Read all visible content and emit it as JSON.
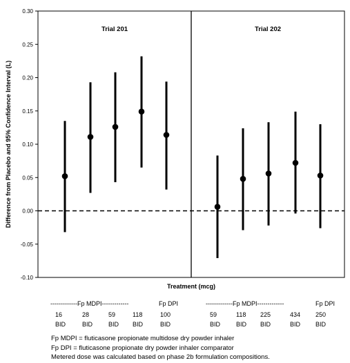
{
  "chart_data": {
    "type": "scatter",
    "ylabel": "Difference from Placebo and 95% Confidence Interval (L)",
    "xlabel": "Treatment (mcg)",
    "ylim": [
      -0.1,
      0.3
    ],
    "yticks": [
      "0.30",
      "0.25",
      "0.20",
      "0.15",
      "0.10",
      "0.05",
      "0.00",
      "-0.05",
      "-0.10"
    ],
    "reference_line_y": 0.0,
    "panels": [
      {
        "title": "Trial 201",
        "points": [
          {
            "estimate": 0.052,
            "lower": -0.032,
            "upper": 0.135
          },
          {
            "estimate": 0.111,
            "lower": 0.027,
            "upper": 0.193
          },
          {
            "estimate": 0.126,
            "lower": 0.043,
            "upper": 0.208
          },
          {
            "estimate": 0.149,
            "lower": 0.065,
            "upper": 0.232
          },
          {
            "estimate": 0.114,
            "lower": 0.032,
            "upper": 0.194
          }
        ]
      },
      {
        "title": "Trial 202",
        "points": [
          {
            "estimate": 0.006,
            "lower": -0.071,
            "upper": 0.083
          },
          {
            "estimate": 0.048,
            "lower": -0.029,
            "upper": 0.124
          },
          {
            "estimate": 0.056,
            "lower": -0.022,
            "upper": 0.133
          },
          {
            "estimate": 0.072,
            "lower": -0.004,
            "upper": 0.149
          },
          {
            "estimate": 0.053,
            "lower": -0.026,
            "upper": 0.13
          }
        ]
      }
    ]
  },
  "groups": {
    "t201_mdpi": "-------------Fp MDPI-------------",
    "t201_dpi": "Fp DPI",
    "t202_mdpi": "-------------Fp MDPI-------------",
    "t202_dpi": "Fp DPI"
  },
  "doses": {
    "t201": [
      {
        "dose": "16",
        "freq": "BID"
      },
      {
        "dose": "28",
        "freq": "BID"
      },
      {
        "dose": "59",
        "freq": "BID"
      },
      {
        "dose": "118",
        "freq": "BID"
      },
      {
        "dose": "100",
        "freq": "BID"
      }
    ],
    "t202": [
      {
        "dose": "59",
        "freq": "BID"
      },
      {
        "dose": "118",
        "freq": "BID"
      },
      {
        "dose": "225",
        "freq": "BID"
      },
      {
        "dose": "434",
        "freq": "BID"
      },
      {
        "dose": "250",
        "freq": "BID"
      }
    ]
  },
  "footnotes": [
    "Fp MDPI = fluticasone propionate multidose dry powder inhaler",
    "Fp DPI = fluticasone propionate dry powder inhaler comparator",
    "Metered dose was calculated based on phase 2b formulation compositions."
  ]
}
